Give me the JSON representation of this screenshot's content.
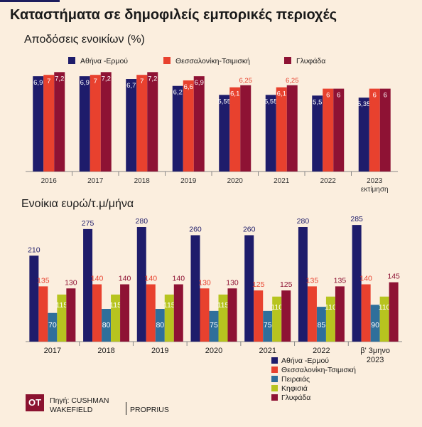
{
  "title": "Καταστήματα σε δημοφιλείς εμπορικές περιοχές",
  "source": {
    "logo": "OT",
    "line1": "Πηγή: CUSHMAN",
    "line2": "WAKEFIELD",
    "line3": "PROPRIUS"
  },
  "colors": {
    "ermou": "#1e1c6b",
    "tsimiski": "#e8412e",
    "glyfada_top": "#8e1234",
    "peiraias": "#2f6f9b",
    "kifisia": "#b7c41f",
    "glyfada_bottom": "#8e1234"
  },
  "chart_data": [
    {
      "type": "bar",
      "title": "Αποδόσεις ενοικίων (%)",
      "categories": [
        "2016",
        "2017",
        "2018",
        "2019",
        "2020",
        "2021",
        "2022",
        "2023\nεκτίμηση"
      ],
      "series": [
        {
          "name": "Αθήνα -Ερμού",
          "values": [
            6.9,
            6.9,
            6.7,
            6.2,
            5.55,
            5.55,
            5.5,
            5.35
          ],
          "labels": [
            "6,9",
            "6,9",
            "6,7",
            "6,2",
            "5,55",
            "5,55",
            "5,5",
            "5,35"
          ]
        },
        {
          "name": "Θεσσαλονίκη-Τσιμισκή",
          "values": [
            7,
            7,
            7,
            6.6,
            6.1,
            6.1,
            6,
            6
          ],
          "labels": [
            "7",
            "7",
            "7",
            "6,6",
            "6,1",
            "6,1",
            "6",
            "6"
          ]
        },
        {
          "name": "Γλυφάδα",
          "values": [
            7.2,
            7.2,
            7.2,
            6.9,
            6.25,
            6.25,
            6,
            6
          ],
          "labels": [
            "7,2",
            "7,2",
            "7,2",
            "6,9",
            "6,25",
            "6,25",
            "6",
            "6"
          ]
        }
      ],
      "legend": "top"
    },
    {
      "type": "bar",
      "title": "Ενοίκια ευρώ/τ.μ/μήνα",
      "categories": [
        "2017",
        "2018",
        "2019",
        "2020",
        "2021",
        "2022",
        "β' 3μηνο\n2023"
      ],
      "series": [
        {
          "name": "Αθήνα -Ερμού",
          "values": [
            210,
            275,
            280,
            260,
            260,
            280,
            285
          ]
        },
        {
          "name": "Θεσσαλονίκη-Τσιμισκή",
          "values": [
            135,
            140,
            140,
            130,
            125,
            135,
            140
          ]
        },
        {
          "name": "Πειραιάς",
          "values": [
            70,
            80,
            80,
            75,
            75,
            85,
            90
          ]
        },
        {
          "name": "Κηφισιά",
          "values": [
            115,
            115,
            115,
            115,
            110,
            110,
            110
          ]
        },
        {
          "name": "Γλυφάδα",
          "values": [
            130,
            140,
            140,
            130,
            125,
            135,
            145
          ]
        }
      ],
      "legend": "bottom-right"
    }
  ]
}
